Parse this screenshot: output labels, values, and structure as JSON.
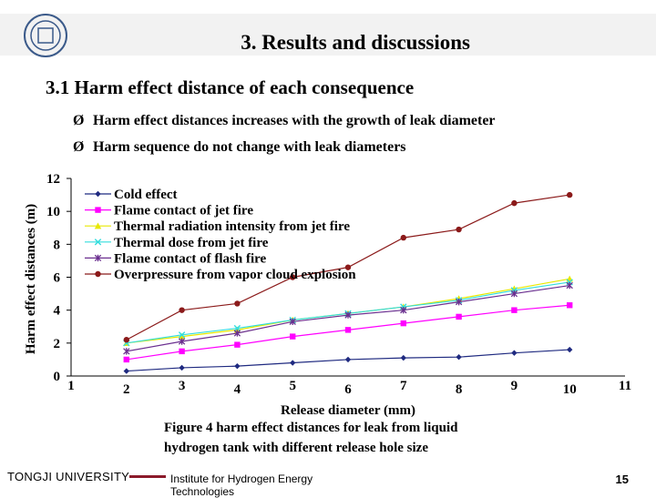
{
  "slide": {
    "title": "3. Results and discussions",
    "section": "3.1 Harm effect distance of each consequence",
    "bullets": [
      "Harm effect distances increases with the growth of leak diameter",
      "Harm sequence do not change with leak diameters"
    ],
    "bullet_glyph": "Ø",
    "caption_line1": "Figure 4 harm effect distances for leak from liquid",
    "caption_line2": "hydrogen tank with different release hole size",
    "footer_org": "TONGJI UNIVERSITY",
    "footer_institute": "Institute for Hydrogen Energy Technologies",
    "page_number": "15",
    "accent_color": "#8b1a2b",
    "title_bar_color": "#f2f2f2",
    "logo_color": "#3b5a8a"
  },
  "chart_data": {
    "type": "line",
    "xlabel": "Release diameter (mm)",
    "ylabel": "Harm effect distances (m)",
    "xlim": [
      1,
      11
    ],
    "ylim": [
      0,
      12
    ],
    "x_ticks": [
      1,
      2,
      3,
      4,
      5,
      6,
      7,
      8,
      9,
      10,
      11
    ],
    "y_ticks": [
      0,
      2,
      4,
      6,
      8,
      10,
      12
    ],
    "grid": false,
    "legend_position": "top-left",
    "x": [
      2,
      3,
      4,
      5,
      6,
      7,
      8,
      9,
      10
    ],
    "series": [
      {
        "name": "Cold effect",
        "color": "#1f2a80",
        "marker": "diamond",
        "values": [
          0.3,
          0.5,
          0.6,
          0.8,
          1.0,
          1.1,
          1.15,
          1.4,
          1.6
        ]
      },
      {
        "name": "Flame contact of jet fire",
        "color": "#ff00ff",
        "marker": "square",
        "values": [
          1.0,
          1.5,
          1.9,
          2.4,
          2.8,
          3.2,
          3.6,
          4.0,
          4.3
        ]
      },
      {
        "name": "Thermal radiation intensity from jet fire",
        "color": "#e8e800",
        "marker": "triangle",
        "values": [
          2.0,
          2.4,
          2.8,
          3.4,
          3.8,
          4.2,
          4.7,
          5.3,
          5.9
        ]
      },
      {
        "name": "Thermal dose from jet fire",
        "color": "#33dddd",
        "marker": "x",
        "values": [
          2.0,
          2.5,
          2.9,
          3.4,
          3.8,
          4.2,
          4.6,
          5.2,
          5.7
        ]
      },
      {
        "name": "Flame contact of flash fire",
        "color": "#6b2f8f",
        "marker": "star",
        "values": [
          1.5,
          2.1,
          2.6,
          3.3,
          3.7,
          4.0,
          4.5,
          5.0,
          5.5
        ]
      },
      {
        "name": "Overpressure from vapor cloud explosion",
        "color": "#8b1a1a",
        "marker": "circle",
        "values": [
          2.2,
          4.0,
          4.4,
          6.0,
          6.6,
          8.4,
          8.9,
          10.5,
          11.0
        ]
      }
    ]
  }
}
